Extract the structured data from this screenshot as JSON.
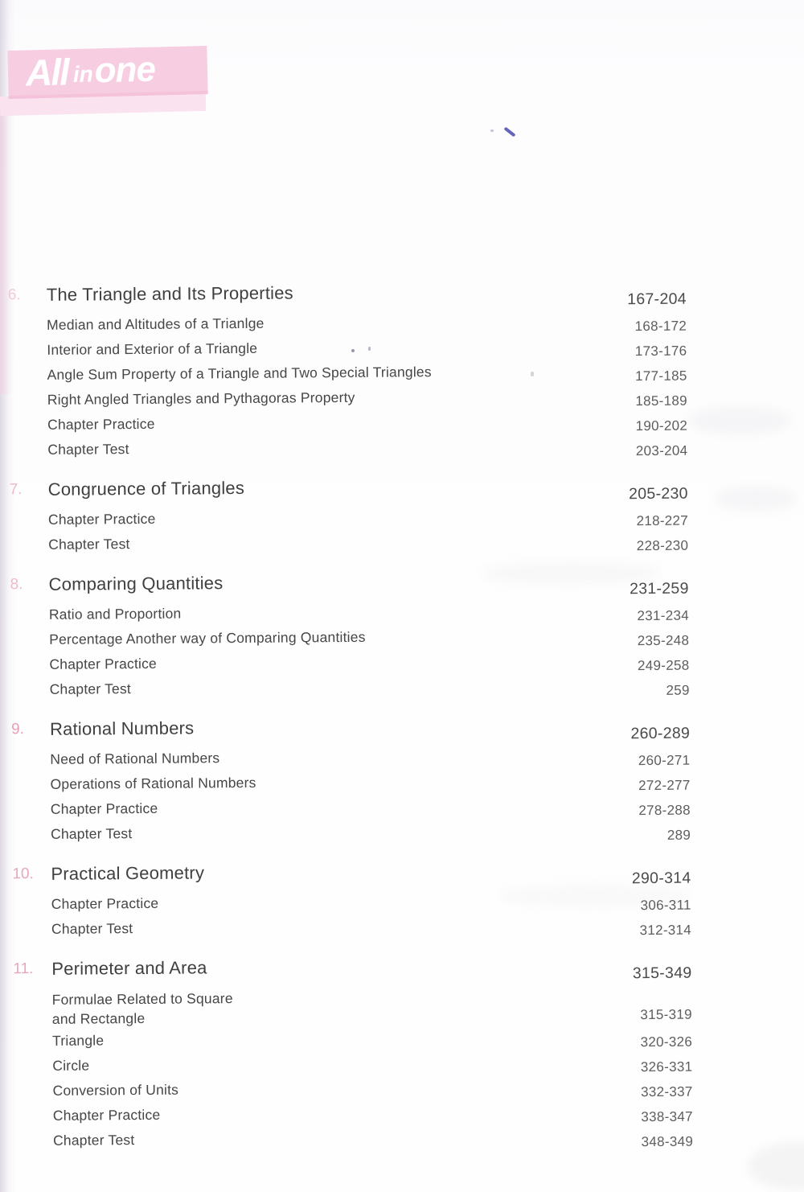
{
  "logo": {
    "part1": "All",
    "part2": "in",
    "part3": "one"
  },
  "colors": {
    "logo_box": "#f7cde2",
    "logo_underbar": "#fae2ef",
    "logo_text": "#ffffff",
    "heading_text": "#3f3f3f",
    "item_text": "#464646",
    "pages_text": "#5d5d5d",
    "chapter_number_pink": "#e6a0b6"
  },
  "toc": {
    "chapters": [
      {
        "number": "6.",
        "number_color": "#f3c8d6",
        "title": "The Triangle and Its Properties",
        "pages": "167-204",
        "items": [
          {
            "label": "Median and Altitudes of a Trianlge",
            "pages": "168-172"
          },
          {
            "label": "Interior and Exterior of a Triangle",
            "pages": "173-176"
          },
          {
            "label": "Angle Sum Property of a Triangle and Two Special Triangles",
            "pages": "177-185"
          },
          {
            "label": "Right Angled Triangles and Pythagoras Property",
            "pages": "185-189"
          },
          {
            "label": "Chapter Practice",
            "pages": "190-202"
          },
          {
            "label": "Chapter Test",
            "pages": "203-204"
          }
        ]
      },
      {
        "number": "7.",
        "number_color": "#eebaca",
        "title": "Congruence of Triangles",
        "pages": "205-230",
        "items": [
          {
            "label": "Chapter Practice",
            "pages": "218-227"
          },
          {
            "label": "Chapter Test",
            "pages": "228-230"
          }
        ]
      },
      {
        "number": "8.",
        "number_color": "#eebaca",
        "title": "Comparing Quantities",
        "pages": "231-259",
        "items": [
          {
            "label": "Ratio and Proportion",
            "pages": "231-234"
          },
          {
            "label": "Percentage Another way of Comparing Quantities",
            "pages": "235-248"
          },
          {
            "label": "Chapter Practice",
            "pages": "249-258"
          },
          {
            "label": "Chapter Test",
            "pages": "259"
          }
        ]
      },
      {
        "number": "9.",
        "number_color": "#e69fb6",
        "title": "Rational Numbers",
        "pages": "260-289",
        "items": [
          {
            "label": "Need of Rational Numbers",
            "pages": "260-271"
          },
          {
            "label": "Operations of Rational Numbers",
            "pages": "272-277"
          },
          {
            "label": "Chapter Practice",
            "pages": "278-288"
          },
          {
            "label": "Chapter Test",
            "pages": "289"
          }
        ]
      },
      {
        "number": "10.",
        "number_color": "#e8a7bb",
        "title": "Practical Geometry",
        "pages": "290-314",
        "items": [
          {
            "label": "Chapter Practice",
            "pages": "306-311"
          },
          {
            "label": "Chapter Test",
            "pages": "312-314"
          }
        ]
      },
      {
        "number": "11.",
        "number_color": "#e8a7bb",
        "title": "Perimeter and Area",
        "pages": "315-349",
        "items": [
          {
            "label": "Formulae Related to Square\nand Rectangle",
            "pages": "315-319"
          },
          {
            "label": "Triangle",
            "pages": "320-326"
          },
          {
            "label": "Circle",
            "pages": "326-331"
          },
          {
            "label": "Conversion of Units",
            "pages": "332-337"
          },
          {
            "label": "Chapter Practice",
            "pages": "338-347"
          },
          {
            "label": "Chapter Test",
            "pages": "348-349"
          }
        ]
      }
    ]
  }
}
